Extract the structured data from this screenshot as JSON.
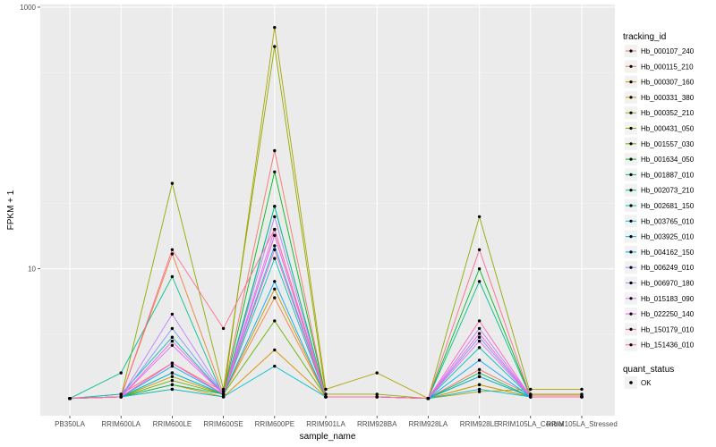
{
  "chart_data": {
    "type": "line",
    "title": "",
    "xlabel": "sample_name",
    "ylabel": "FPKM + 1",
    "y_scale": "log10",
    "ylim": [
      1,
      1000
    ],
    "y_ticks": [
      {
        "value": 10,
        "label": "10"
      },
      {
        "value": 1000,
        "label": "1000"
      }
    ],
    "grid": true,
    "legend_position": "right",
    "categories": [
      "PB350LA",
      "RRIM600LA",
      "RRIM600LE",
      "RRIM600SE",
      "RRIM600PE",
      "RRIM901LA",
      "RRIM928BA",
      "RRIM928LA",
      "RRIM928LE",
      "RRIM105LA_Control",
      "RRIM105LA_Stressed"
    ],
    "legend": {
      "title": "tracking_id",
      "entries": [
        "Hb_000107_240",
        "Hb_000115_210",
        "Hb_000307_160",
        "Hb_000331_380",
        "Hb_000352_210",
        "Hb_000431_050",
        "Hb_001557_030",
        "Hb_001634_050",
        "Hb_001887_010",
        "Hb_002073_210",
        "Hb_002681_150",
        "Hb_003765_010",
        "Hb_003925_010",
        "Hb_004162_150",
        "Hb_006249_010",
        "Hb_006970_180",
        "Hb_015183_090",
        "Hb_022250_140",
        "Hb_150179_010",
        "Hb_151436_010"
      ]
    },
    "point_legend": {
      "title": "quant_status",
      "entry": "OK"
    },
    "series": [
      {
        "name": "Hb_000107_240",
        "color": "#F8766D",
        "values": [
          1.02,
          1.1,
          1.9,
          1.15,
          80,
          1.05,
          1.05,
          1.02,
          1.7,
          1.08,
          1.08
        ]
      },
      {
        "name": "Hb_000115_210",
        "color": "#EC8239",
        "values": [
          1.02,
          1.05,
          13,
          1.1,
          6,
          1.05,
          1.05,
          1.02,
          1.5,
          1.05,
          1.05
        ]
      },
      {
        "name": "Hb_000307_160",
        "color": "#DB8E00",
        "values": [
          1.02,
          1.05,
          1.3,
          1.05,
          2.4,
          1.05,
          1.05,
          1.02,
          1.3,
          1.05,
          1.05
        ]
      },
      {
        "name": "Hb_000331_380",
        "color": "#C79800",
        "values": [
          1.02,
          1.05,
          1.5,
          1.1,
          7,
          1.05,
          1.05,
          1.02,
          1.3,
          1.05,
          1.05
        ]
      },
      {
        "name": "Hb_000352_210",
        "color": "#AEA200",
        "values": [
          1.02,
          1.05,
          1.2,
          1.05,
          700,
          1.2,
          1.6,
          1.02,
          1.15,
          1.2,
          1.2
        ]
      },
      {
        "name": "Hb_000431_050",
        "color": "#8FAA00",
        "values": [
          1.02,
          1.05,
          45,
          1.2,
          500,
          1.1,
          1.1,
          1.02,
          25,
          1.1,
          1.1
        ]
      },
      {
        "name": "Hb_001557_030",
        "color": "#64B200",
        "values": [
          1.02,
          1.05,
          1.4,
          1.1,
          4,
          1.05,
          1.05,
          1.02,
          1.5,
          1.05,
          1.05
        ]
      },
      {
        "name": "Hb_001634_050",
        "color": "#00B81B",
        "values": [
          1.02,
          1.05,
          1.6,
          1.1,
          55,
          1.05,
          1.05,
          1.02,
          10,
          1.05,
          1.05
        ]
      },
      {
        "name": "Hb_001887_010",
        "color": "#00BD5C",
        "values": [
          1.02,
          1.05,
          1.3,
          1.1,
          30,
          1.05,
          1.05,
          1.02,
          1.6,
          1.05,
          1.05
        ]
      },
      {
        "name": "Hb_002073_210",
        "color": "#00C08E",
        "values": [
          1.02,
          1.6,
          8.7,
          1.05,
          30,
          1.05,
          1.05,
          1.02,
          8,
          1.05,
          1.05
        ]
      },
      {
        "name": "Hb_002681_150",
        "color": "#00C1B7",
        "values": [
          1.02,
          1.1,
          3,
          1.1,
          12,
          1.05,
          1.05,
          1.02,
          2.5,
          1.05,
          1.05
        ]
      },
      {
        "name": "Hb_003765_010",
        "color": "#00BDD4",
        "values": [
          1.02,
          1.05,
          1.2,
          1.05,
          1.8,
          1.05,
          1.05,
          1.02,
          1.2,
          1.05,
          1.05
        ]
      },
      {
        "name": "Hb_003925_010",
        "color": "#00B5EE",
        "values": [
          1.02,
          1.05,
          1.6,
          1.1,
          15,
          1.05,
          1.05,
          1.02,
          1.5,
          1.05,
          1.05
        ]
      },
      {
        "name": "Hb_004162_150",
        "color": "#00A7FF",
        "values": [
          1.02,
          1.05,
          1.8,
          1.1,
          8,
          1.05,
          1.05,
          1.02,
          2,
          1.05,
          1.05
        ]
      },
      {
        "name": "Hb_006249_010",
        "color": "#7F96FF",
        "values": [
          1.02,
          1.05,
          3.5,
          1.1,
          18,
          1.05,
          1.05,
          1.02,
          3,
          1.05,
          1.05
        ]
      },
      {
        "name": "Hb_006970_180",
        "color": "#BC81FF",
        "values": [
          1.02,
          1.05,
          4.5,
          1.1,
          25,
          1.05,
          1.05,
          1.02,
          3.5,
          1.05,
          1.05
        ]
      },
      {
        "name": "Hb_015183_090",
        "color": "#E26EF7",
        "values": [
          1.02,
          1.05,
          2.6,
          1.1,
          20,
          1.05,
          1.05,
          1.02,
          2.8,
          1.05,
          1.05
        ]
      },
      {
        "name": "Hb_022250_140",
        "color": "#F863DF",
        "values": [
          1.02,
          1.05,
          2.8,
          1.1,
          18,
          1.05,
          1.05,
          1.02,
          3.2,
          1.05,
          1.05
        ]
      },
      {
        "name": "Hb_150179_010",
        "color": "#FF62BC",
        "values": [
          1.02,
          1.05,
          1.9,
          1.1,
          14,
          1.05,
          1.05,
          1.02,
          4,
          1.05,
          1.05
        ]
      },
      {
        "name": "Hb_151436_010",
        "color": "#FF6C91",
        "values": [
          1.02,
          1.05,
          14,
          3.5,
          20,
          1.05,
          1.05,
          1.02,
          14,
          1.05,
          1.05
        ]
      }
    ]
  }
}
